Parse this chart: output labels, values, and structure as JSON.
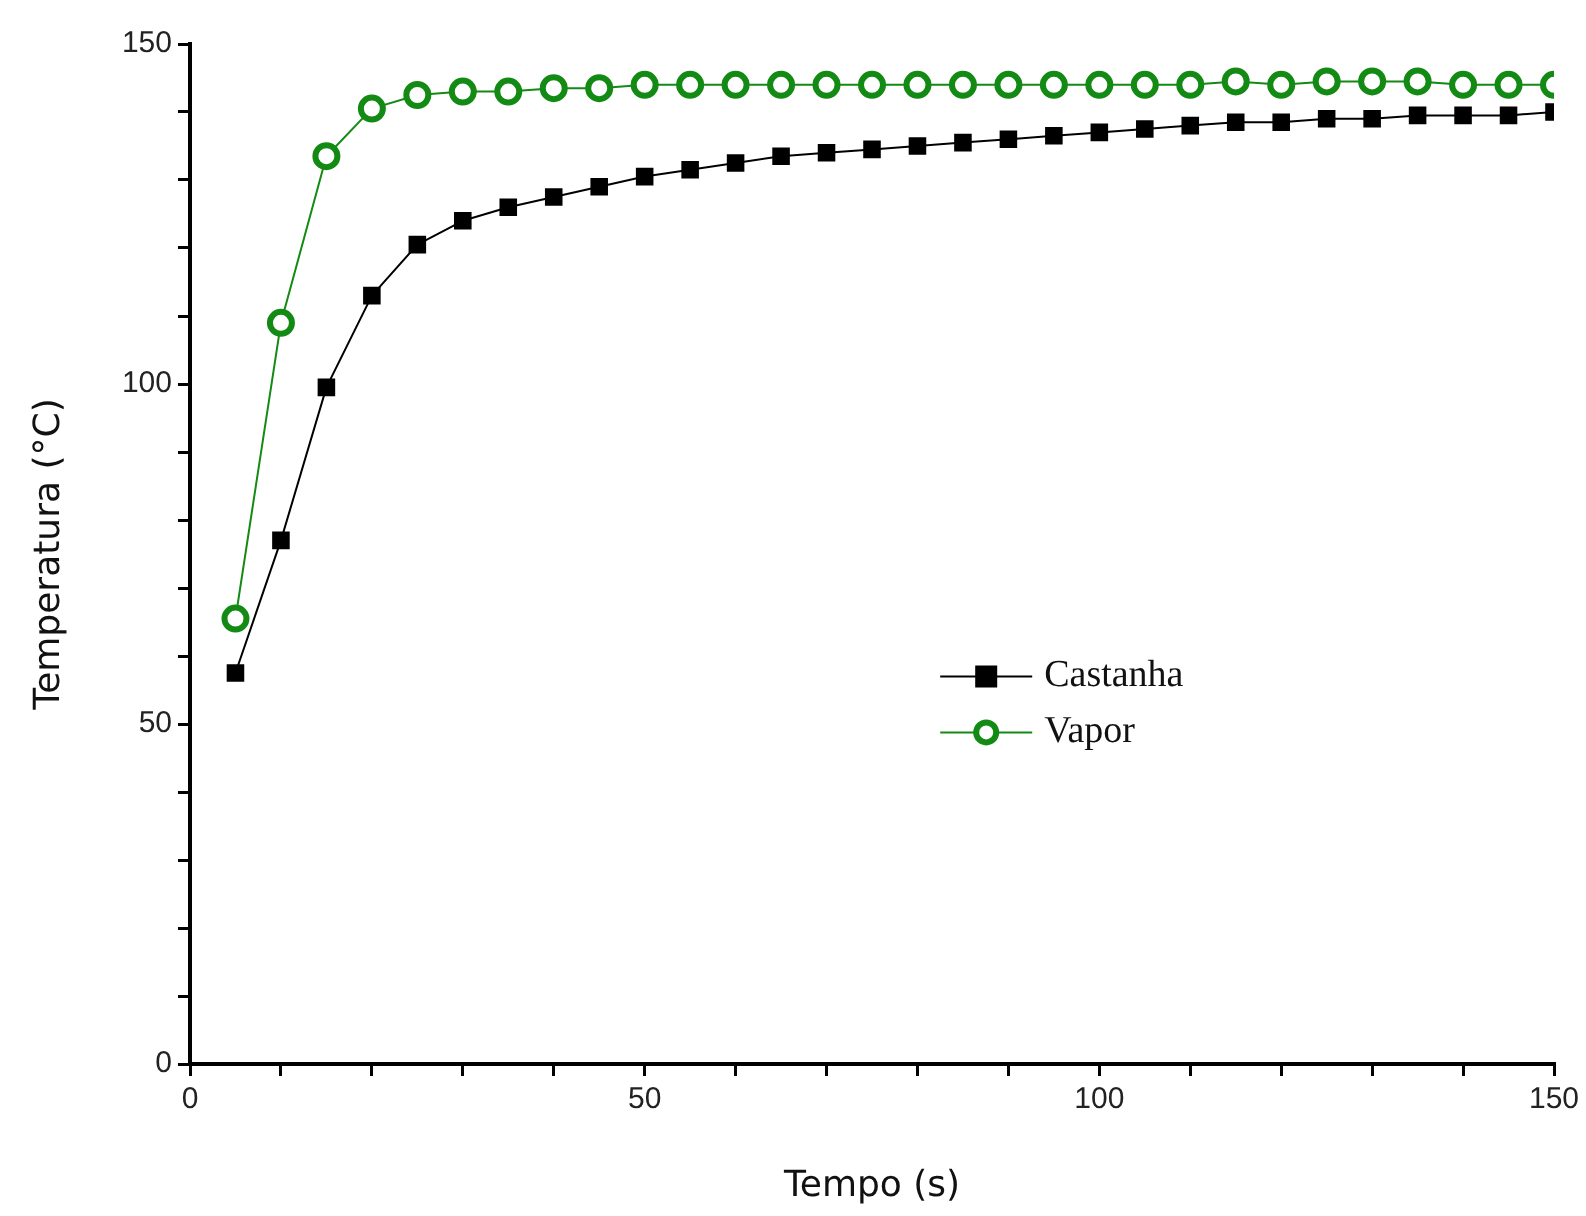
{
  "chart_data": {
    "type": "line",
    "xlabel": "Tempo (s)",
    "ylabel": "Temperatura (°C)",
    "x": [
      5,
      10,
      15,
      20,
      25,
      30,
      35,
      40,
      45,
      50,
      55,
      60,
      65,
      70,
      75,
      80,
      85,
      90,
      95,
      100,
      105,
      110,
      115,
      120,
      125,
      130,
      135,
      140,
      145,
      150
    ],
    "series": [
      {
        "name": "Castanha",
        "color": "#000000",
        "marker": "square",
        "values": [
          57.5,
          77,
          99.5,
          113,
          120.5,
          124,
          126,
          127.5,
          129,
          130.5,
          131.5,
          132.5,
          133.5,
          134,
          134.5,
          135,
          135.5,
          136,
          136.5,
          137,
          137.5,
          138,
          138.5,
          138.5,
          139,
          139,
          139.5,
          139.5,
          139.5,
          140
        ]
      },
      {
        "name": "Vapor",
        "color": "#138a13",
        "marker": "circle",
        "values": [
          65.5,
          109,
          133.5,
          140.5,
          142.5,
          143,
          143,
          143.5,
          143.5,
          144,
          144,
          144,
          144,
          144,
          144,
          144,
          144,
          144,
          144,
          144,
          144,
          144,
          144.5,
          144,
          144.5,
          144.5,
          144.5,
          144,
          144,
          144
        ]
      }
    ],
    "xlim": [
      0,
      150
    ],
    "xticks": [
      0,
      {
        "value": 10,
        "label": null
      },
      {
        "value": 20,
        "label": null
      },
      {
        "value": 30,
        "label": null
      },
      {
        "value": 40,
        "label": null
      },
      50,
      {
        "value": 60,
        "label": null
      },
      {
        "value": 70,
        "label": null
      },
      {
        "value": 80,
        "label": null
      },
      {
        "value": 90,
        "label": null
      },
      100,
      {
        "value": 110,
        "label": null
      },
      {
        "value": 120,
        "label": null
      },
      {
        "value": 130,
        "label": null
      },
      {
        "value": 140,
        "label": null
      },
      150
    ],
    "ylim": [
      0,
      150
    ],
    "yticks": [
      0,
      {
        "value": 10,
        "label": null
      },
      {
        "value": 20,
        "label": null
      },
      {
        "value": 30,
        "label": null
      },
      {
        "value": 40,
        "label": null
      },
      50,
      {
        "value": 60,
        "label": null
      },
      {
        "value": 70,
        "label": null
      },
      {
        "value": 80,
        "label": null
      },
      {
        "value": 90,
        "label": null
      },
      100,
      {
        "value": 110,
        "label": null
      },
      {
        "value": 120,
        "label": null
      },
      {
        "value": 130,
        "label": null
      },
      {
        "value": 140,
        "label": null
      },
      150
    ],
    "grid": false,
    "legend": "center",
    "line_style": "solid"
  }
}
